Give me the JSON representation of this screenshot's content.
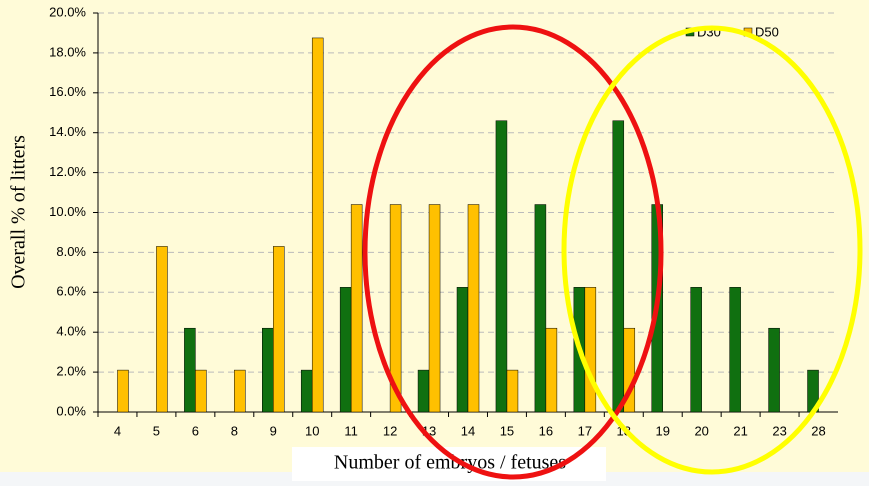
{
  "chart_data": {
    "type": "bar",
    "x_label": "Number of embryos / fetuses",
    "y_label": "Overall % of litters",
    "categories": [
      "4",
      "5",
      "6",
      "8",
      "9",
      "10",
      "11",
      "12",
      "13",
      "14",
      "15",
      "16",
      "17",
      "18",
      "19",
      "20",
      "21",
      "23",
      "28"
    ],
    "series": [
      {
        "name": "D30",
        "color": "#107010",
        "values": [
          0,
          0,
          4.2,
          0,
          4.2,
          2.1,
          6.25,
          0,
          2.1,
          6.25,
          14.6,
          10.4,
          6.25,
          14.6,
          10.4,
          6.25,
          6.25,
          4.2,
          2.1
        ]
      },
      {
        "name": "D50",
        "color": "#ffc000",
        "values": [
          2.1,
          8.3,
          2.1,
          2.1,
          8.3,
          18.75,
          10.4,
          10.4,
          10.4,
          10.4,
          2.1,
          4.2,
          6.25,
          4.2,
          0,
          0,
          0,
          0,
          0
        ]
      }
    ],
    "ylim": [
      0,
      20
    ],
    "yticks": [
      {
        "value": 0,
        "label": "0.0%"
      },
      {
        "value": 2,
        "label": "2.0%"
      },
      {
        "value": 4,
        "label": "4.0%"
      },
      {
        "value": 6,
        "label": "6.0%"
      },
      {
        "value": 8,
        "label": "8.0%"
      },
      {
        "value": 10,
        "label": "10.0%"
      },
      {
        "value": 12,
        "label": "12.0%"
      },
      {
        "value": 14,
        "label": "14.0%"
      },
      {
        "value": 16,
        "label": "16.0%"
      },
      {
        "value": 18,
        "label": "18.0%"
      },
      {
        "value": 20,
        "label": "20.0%"
      }
    ],
    "grid": true
  }
}
